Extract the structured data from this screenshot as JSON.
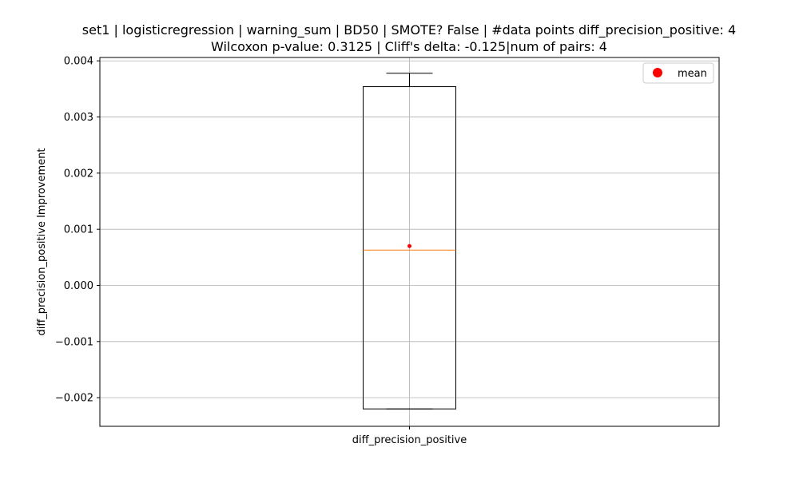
{
  "chart_data": {
    "type": "box",
    "title_line1": "set1 | logisticregression | warning_sum | BD50 | SMOTE? False | #data points diff_precision_positive: 4",
    "title_line2": "Wilcoxon p-value: 0.3125 | Cliff's delta: -0.125|num of pairs: 4",
    "ylabel": "diff_precision_positive Improvement",
    "categories": [
      "diff_precision_positive"
    ],
    "ylim": [
      -0.00251,
      0.00406
    ],
    "yticks": [
      -0.002,
      -0.001,
      0.0,
      0.001,
      0.002,
      0.003,
      0.004
    ],
    "ytick_labels": [
      "−0.002",
      "−0.001",
      "0.000",
      "0.001",
      "0.002",
      "0.003",
      "0.004"
    ],
    "grid": true,
    "legend": {
      "position": "top-right",
      "entries": [
        "mean"
      ]
    },
    "boxes": [
      {
        "name": "diff_precision_positive",
        "whisker_low": -0.0022,
        "q1": -0.0022,
        "median": 0.00063,
        "q3": 0.00354,
        "whisker_high": 0.00378,
        "mean": 0.0007
      }
    ],
    "colors": {
      "box": "#000000",
      "median": "#ff7f0e",
      "mean": "#ff0000",
      "grid": "#b0b0b0"
    }
  }
}
